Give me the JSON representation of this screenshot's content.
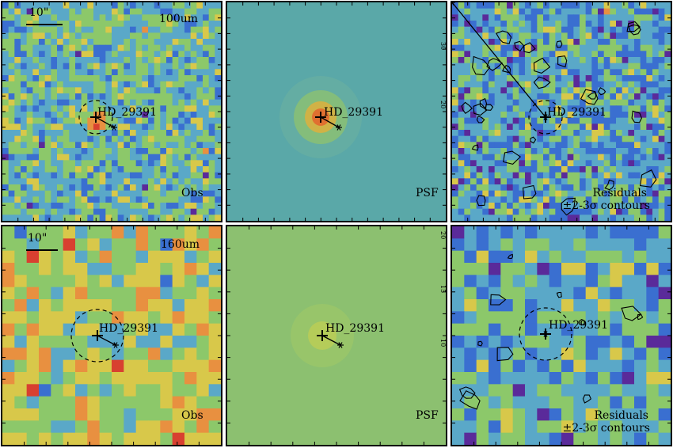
{
  "panels": [
    {
      "id": "r1c1",
      "kind": "obs",
      "band": "100um",
      "scale_label": "10\"",
      "target": "HD_29391",
      "corner_label": "Obs"
    },
    {
      "id": "r1c2",
      "kind": "psf",
      "target": "HD_29391",
      "corner_label": "PSF",
      "tick_labels": [
        "30",
        "20"
      ]
    },
    {
      "id": "r1c3",
      "kind": "resid",
      "target": "HD_29391",
      "corner_label": "Residuals",
      "corner_label2": "±2-3σ contours"
    },
    {
      "id": "r2c1",
      "kind": "obs",
      "band": "160um",
      "scale_label": "10\"",
      "target": "HD_29391",
      "corner_label": "Obs"
    },
    {
      "id": "r2c2",
      "kind": "psf",
      "target": "HD_29391",
      "corner_label": "PSF",
      "tick_labels": [
        "20",
        "15",
        "10"
      ]
    },
    {
      "id": "r2c3",
      "kind": "resid",
      "target": "HD_29391",
      "corner_label": "Residuals",
      "corner_label2": "±2-3σ contours"
    }
  ],
  "colors": {
    "blue": "#3a6fd0",
    "cyan": "#5aa8c8",
    "green": "#8cc86a",
    "yellow": "#d8c84a",
    "orange": "#e89040",
    "red": "#d84030",
    "purple": "#5a2a9a"
  }
}
